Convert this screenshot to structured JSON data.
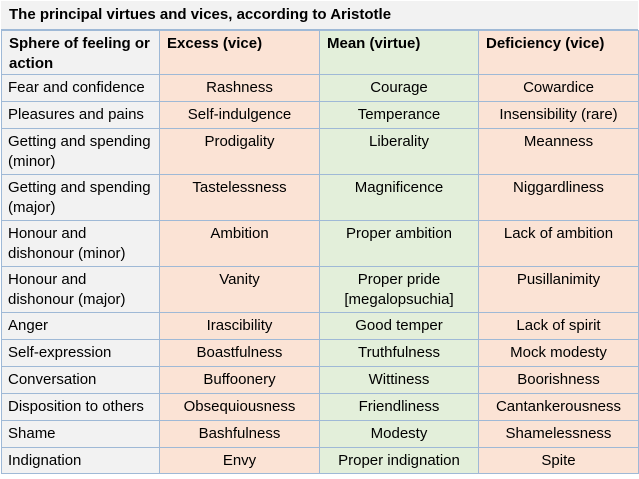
{
  "title": "The principal virtues and vices, according to Aristotle",
  "headers": {
    "sphere": "Sphere of feeling or action",
    "excess": "Excess (vice)",
    "mean": "Mean (virtue)",
    "deficiency": "Deficiency (vice)"
  },
  "rows": [
    {
      "sphere": "Fear and confidence",
      "excess": "Rashness",
      "mean": "Courage",
      "deficiency": "Cowardice"
    },
    {
      "sphere": "Pleasures and pains",
      "excess": "Self-indulgence",
      "mean": "Temperance",
      "deficiency": "Insensibility (rare)"
    },
    {
      "sphere": "Getting and spending (minor)",
      "excess": "Prodigality",
      "mean": "Liberality",
      "deficiency": "Meanness"
    },
    {
      "sphere": "Getting and spending (major)",
      "excess": "Tastelessness",
      "mean": "Magnificence",
      "deficiency": "Niggardliness"
    },
    {
      "sphere": "Honour and dishonour (minor)",
      "excess": "Ambition",
      "mean": "Proper ambition",
      "deficiency": "Lack of ambition"
    },
    {
      "sphere": "Honour and dishonour (major)",
      "excess": "Vanity",
      "mean": "Proper pride [megalopsuchia]",
      "deficiency": "Pusillanimity"
    },
    {
      "sphere": "Anger",
      "excess": "Irascibility",
      "mean": "Good temper",
      "deficiency": "Lack of spirit"
    },
    {
      "sphere": "Self-expression",
      "excess": "Boastfulness",
      "mean": "Truthfulness",
      "deficiency": "Mock modesty"
    },
    {
      "sphere": "Conversation",
      "excess": "Buffoonery",
      "mean": "Wittiness",
      "deficiency": "Boorishness"
    },
    {
      "sphere": "Disposition to others",
      "excess": "Obsequiousness",
      "mean": "Friendliness",
      "deficiency": "Cantankerousness"
    },
    {
      "sphere": "Shame",
      "excess": "Bashfulness",
      "mean": "Modesty",
      "deficiency": "Shamelessness"
    },
    {
      "sphere": "Indignation",
      "excess": "Envy",
      "mean": "Proper indignation",
      "deficiency": "Spite"
    }
  ],
  "colors": {
    "sphere_bg": "#f2f2f2",
    "vice_bg": "#fbe3d5",
    "virtue_bg": "#e3efda",
    "grid_line": "#9fb9d6"
  }
}
